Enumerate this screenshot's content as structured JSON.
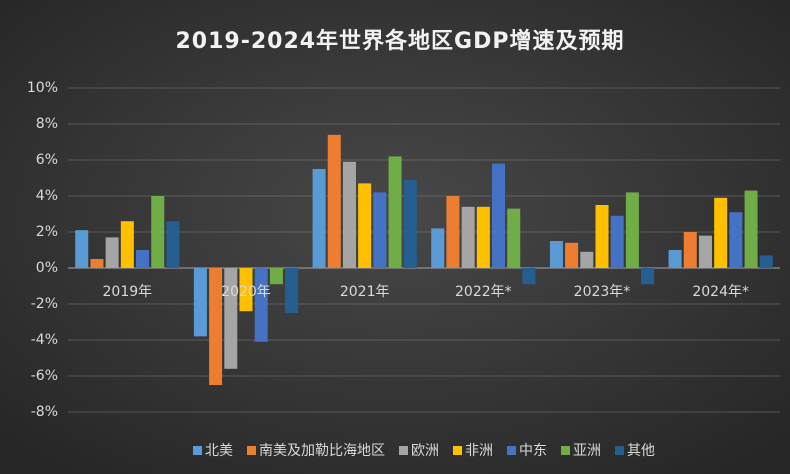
{
  "chart_data": {
    "type": "bar",
    "title": "2019-2024年世界各地区GDP增速及预期",
    "categories": [
      "2019年",
      "2020年",
      "2021年",
      "2022年*",
      "2023年*",
      "2024年*"
    ],
    "series": [
      {
        "name": "北美",
        "color": "#5b9bd5",
        "values": [
          2.1,
          -3.8,
          5.5,
          2.2,
          1.5,
          1.0
        ]
      },
      {
        "name": "南美及加勒比海地区",
        "color": "#ed7d31",
        "values": [
          0.5,
          -6.5,
          7.4,
          4.0,
          1.4,
          2.0
        ]
      },
      {
        "name": "欧洲",
        "color": "#a5a5a5",
        "values": [
          1.7,
          -5.6,
          5.9,
          3.4,
          0.9,
          1.8
        ]
      },
      {
        "name": "非洲",
        "color": "#ffc000",
        "values": [
          2.6,
          -2.4,
          4.7,
          3.4,
          3.5,
          3.9
        ]
      },
      {
        "name": "中东",
        "color": "#4472c4",
        "values": [
          1.0,
          -4.1,
          4.2,
          5.8,
          2.9,
          3.1
        ]
      },
      {
        "name": "亚洲",
        "color": "#70ad47",
        "values": [
          4.0,
          -0.9,
          6.2,
          3.3,
          4.2,
          4.3
        ]
      },
      {
        "name": "其他",
        "color": "#255e91",
        "values": [
          2.6,
          -2.5,
          4.9,
          -0.9,
          -0.9,
          0.7
        ]
      }
    ],
    "ylim": [
      -8,
      10
    ],
    "yticks": [
      {
        "value": -8,
        "label": "-8%"
      },
      {
        "value": -6,
        "label": "-6%"
      },
      {
        "value": -4,
        "label": "-4%"
      },
      {
        "value": -2,
        "label": "-2%"
      },
      {
        "value": 0,
        "label": "0%"
      },
      {
        "value": 2,
        "label": "2%"
      },
      {
        "value": 4,
        "label": "4%"
      },
      {
        "value": 6,
        "label": "6%"
      },
      {
        "value": 8,
        "label": "8%"
      },
      {
        "value": 10,
        "label": "10%"
      }
    ],
    "grid": true,
    "legend": "bottom"
  }
}
